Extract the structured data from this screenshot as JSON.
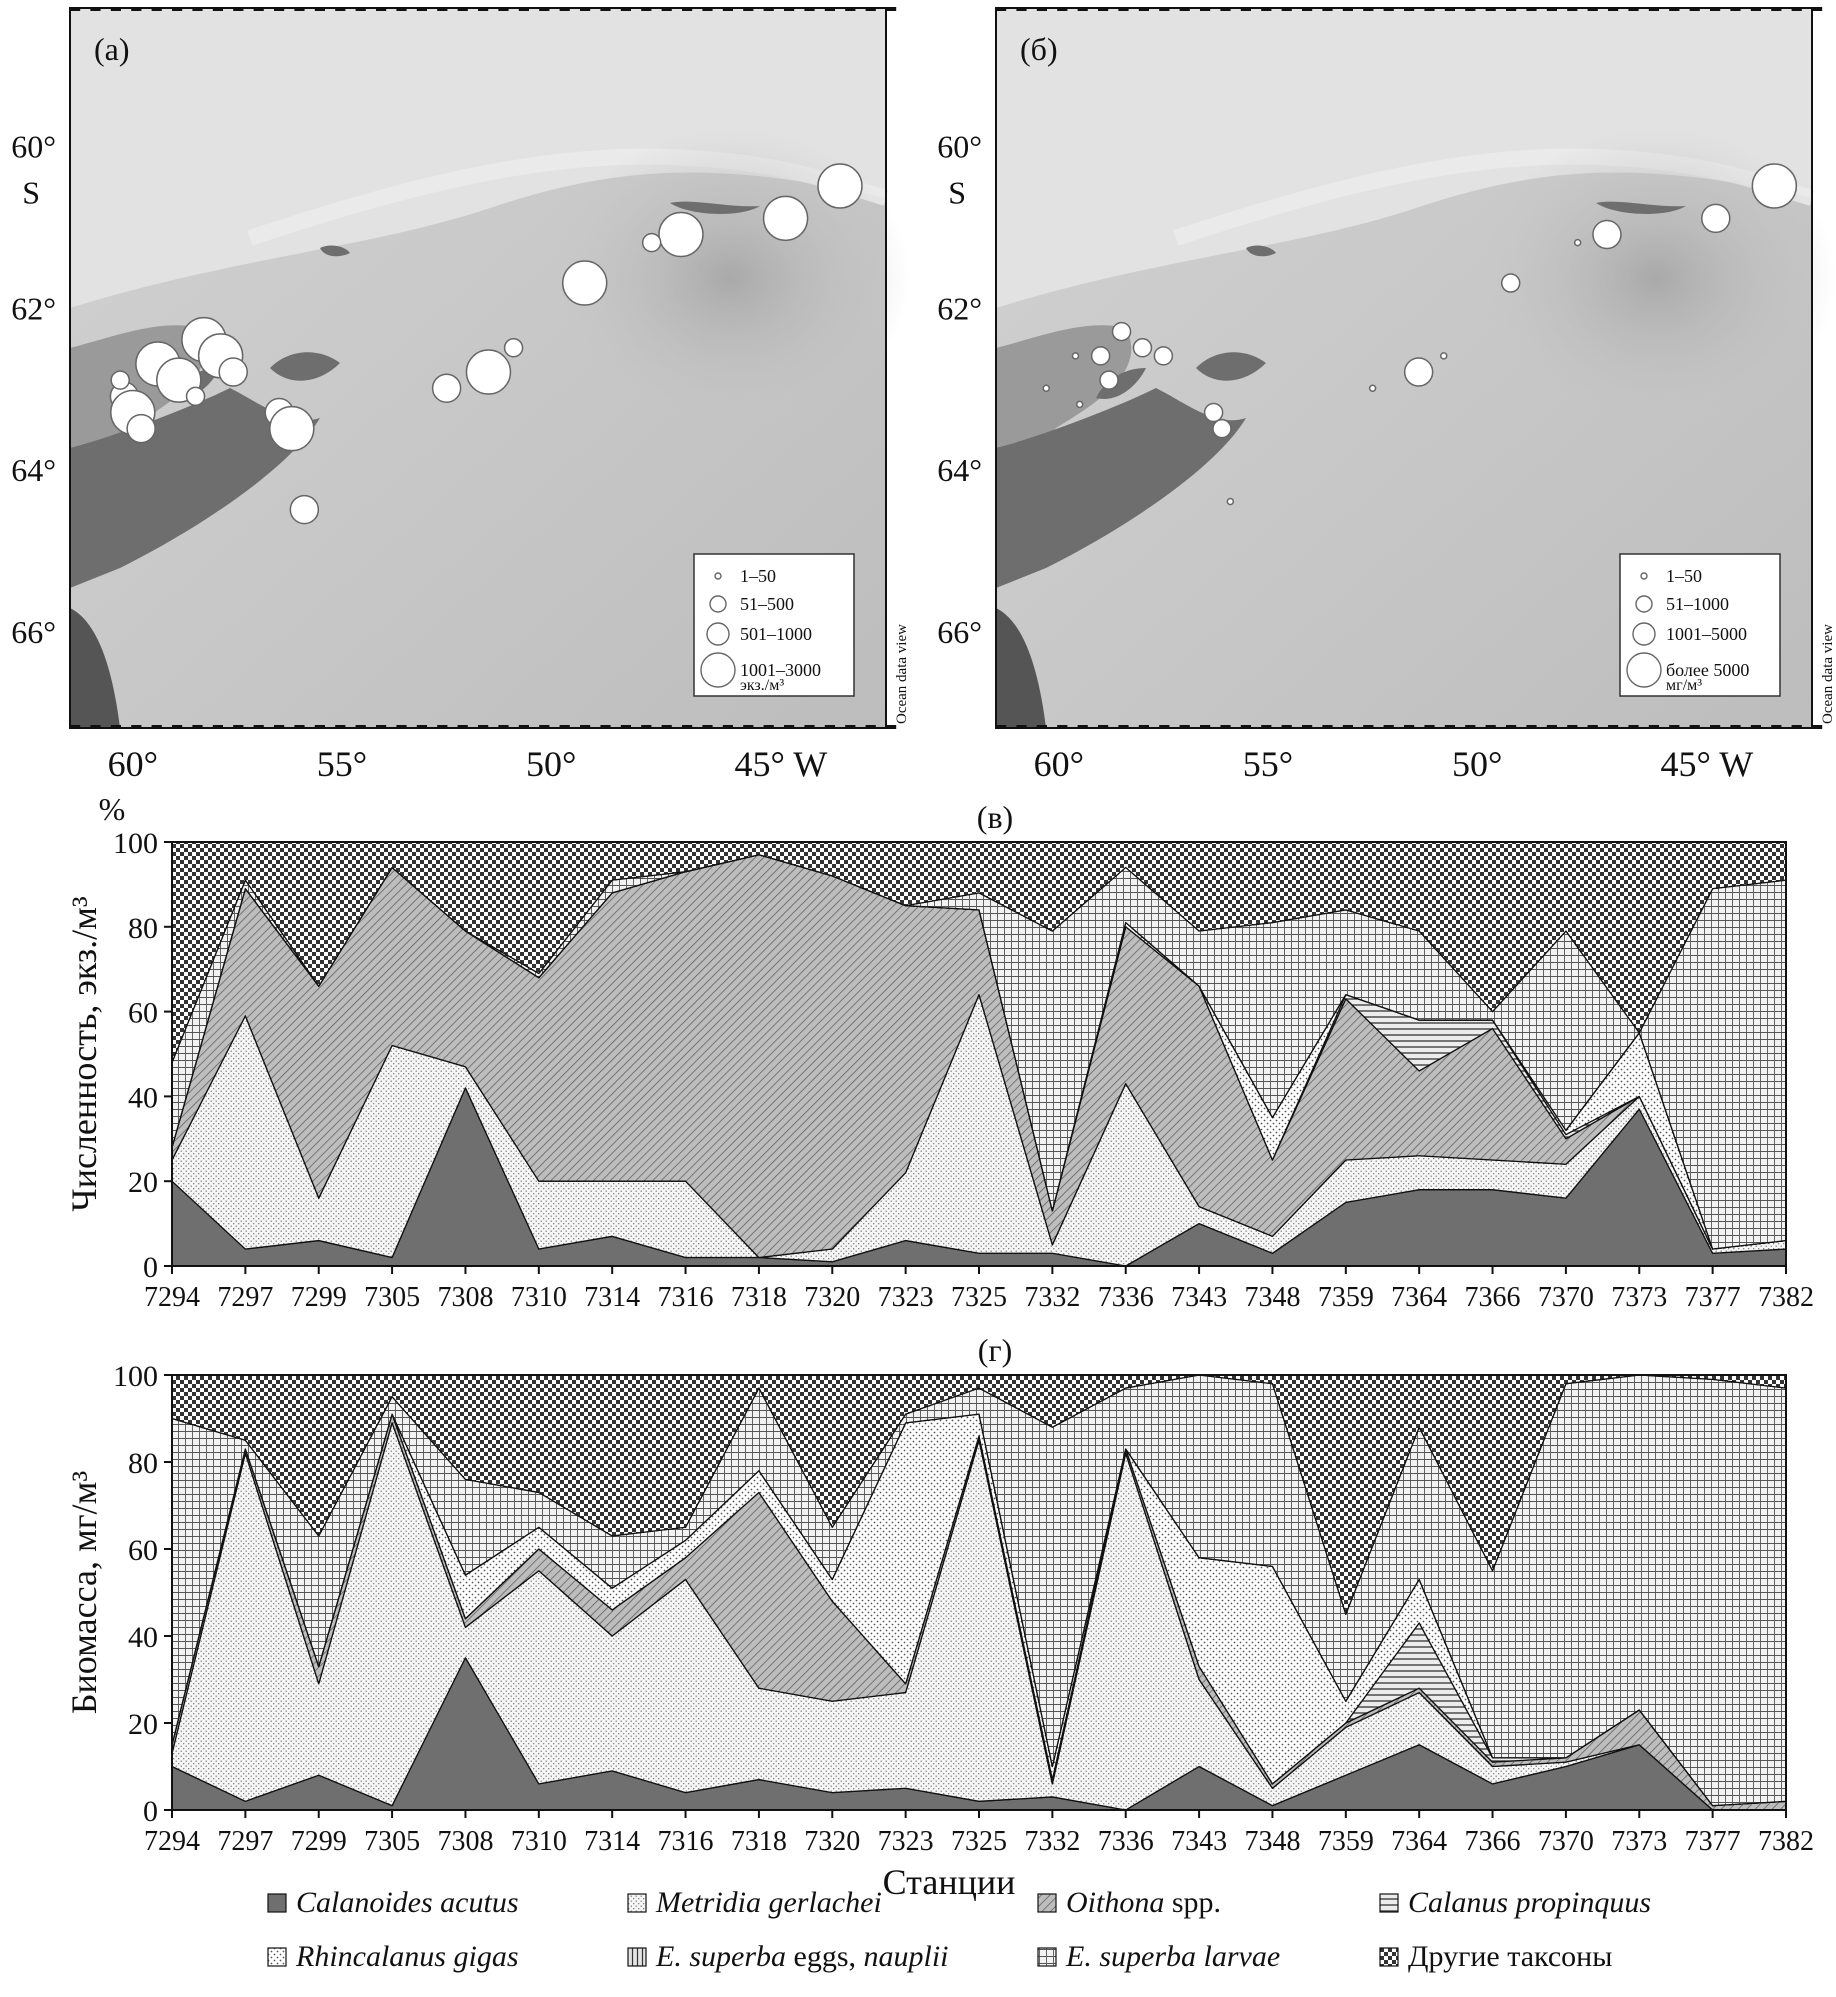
{
  "maps": [
    {
      "panel_label": "(а)",
      "lat_labels": [
        "60°",
        "62°",
        "64°",
        "66°"
      ],
      "lat_values": [
        60,
        62,
        64,
        66
      ],
      "hemisphere_lat": "S",
      "lon_labels": [
        "60°",
        "55°",
        "50°",
        "45° W"
      ],
      "lon_values": [
        60,
        55,
        50,
        45
      ],
      "watermark": "Ocean data view",
      "legend": [
        "1–50",
        "51–500",
        "501–1000",
        "1001–3000",
        "экз./м³"
      ],
      "stations": [
        {
          "lon": 59.4,
          "lat": 62.7,
          "cls": 3
        },
        {
          "lon": 58.9,
          "lat": 62.9,
          "cls": 3
        },
        {
          "lon": 58.3,
          "lat": 62.4,
          "cls": 3
        },
        {
          "lon": 57.9,
          "lat": 62.6,
          "cls": 3
        },
        {
          "lon": 57.6,
          "lat": 62.8,
          "cls": 2
        },
        {
          "lon": 58.5,
          "lat": 63.1,
          "cls": 1
        },
        {
          "lon": 60.2,
          "lat": 63.1,
          "cls": 2
        },
        {
          "lon": 60.0,
          "lat": 63.3,
          "cls": 3
        },
        {
          "lon": 59.8,
          "lat": 63.5,
          "cls": 2
        },
        {
          "lon": 60.3,
          "lat": 62.9,
          "cls": 1
        },
        {
          "lon": 56.5,
          "lat": 63.3,
          "cls": 2
        },
        {
          "lon": 56.2,
          "lat": 63.5,
          "cls": 3
        },
        {
          "lon": 55.9,
          "lat": 64.5,
          "cls": 2
        },
        {
          "lon": 51.5,
          "lat": 62.8,
          "cls": 3
        },
        {
          "lon": 52.5,
          "lat": 63.0,
          "cls": 2
        },
        {
          "lon": 50.9,
          "lat": 62.5,
          "cls": 1
        },
        {
          "lon": 49.2,
          "lat": 61.7,
          "cls": 3
        },
        {
          "lon": 46.9,
          "lat": 61.1,
          "cls": 3
        },
        {
          "lon": 47.6,
          "lat": 61.2,
          "cls": 1
        },
        {
          "lon": 44.4,
          "lat": 60.9,
          "cls": 3
        },
        {
          "lon": 43.1,
          "lat": 60.5,
          "cls": 3
        }
      ]
    },
    {
      "panel_label": "(б)",
      "lat_labels": [
        "60°",
        "62°",
        "64°",
        "66°"
      ],
      "lat_values": [
        60,
        62,
        64,
        66
      ],
      "hemisphere_lat": "S",
      "lon_labels": [
        "60°",
        "55°",
        "50°",
        "45° W"
      ],
      "lon_values": [
        60,
        55,
        50,
        45
      ],
      "watermark": "Ocean data view",
      "legend": [
        "1–50",
        "51–1000",
        "1001–5000",
        "более 5000",
        "мг/м³"
      ],
      "stations": [
        {
          "lon": 58.5,
          "lat": 62.3,
          "cls": 1
        },
        {
          "lon": 58.0,
          "lat": 62.5,
          "cls": 1
        },
        {
          "lon": 57.5,
          "lat": 62.6,
          "cls": 1
        },
        {
          "lon": 59.0,
          "lat": 62.6,
          "cls": 1
        },
        {
          "lon": 58.8,
          "lat": 62.9,
          "cls": 1
        },
        {
          "lon": 59.6,
          "lat": 62.6,
          "cls": 0
        },
        {
          "lon": 60.3,
          "lat": 63.0,
          "cls": 0
        },
        {
          "lon": 59.5,
          "lat": 63.2,
          "cls": 0
        },
        {
          "lon": 56.3,
          "lat": 63.3,
          "cls": 1
        },
        {
          "lon": 56.1,
          "lat": 63.5,
          "cls": 1
        },
        {
          "lon": 55.9,
          "lat": 64.4,
          "cls": 0
        },
        {
          "lon": 51.4,
          "lat": 62.8,
          "cls": 2
        },
        {
          "lon": 52.5,
          "lat": 63.0,
          "cls": 0
        },
        {
          "lon": 50.8,
          "lat": 62.6,
          "cls": 0
        },
        {
          "lon": 49.2,
          "lat": 61.7,
          "cls": 1
        },
        {
          "lon": 46.9,
          "lat": 61.1,
          "cls": 2
        },
        {
          "lon": 47.6,
          "lat": 61.2,
          "cls": 0
        },
        {
          "lon": 44.3,
          "lat": 60.9,
          "cls": 2
        },
        {
          "lon": 42.9,
          "lat": 60.5,
          "cls": 3
        }
      ]
    }
  ],
  "chart_data": [
    {
      "type": "area",
      "panel_label": "(в)",
      "unit_top": "%",
      "ylabel": "Численность, экз./м³",
      "xlabel": "",
      "ylim": [
        0,
        100
      ],
      "yticks": [
        0,
        20,
        40,
        60,
        80,
        100
      ],
      "categories": [
        "7294",
        "7297",
        "7299",
        "7305",
        "7308",
        "7310",
        "7314",
        "7316",
        "7318",
        "7320",
        "7323",
        "7325",
        "7332",
        "7336",
        "7343",
        "7348",
        "7359",
        "7364",
        "7366",
        "7370",
        "7373",
        "7377",
        "7382"
      ],
      "series": [
        {
          "name": "Calanoides acutus",
          "values": [
            20,
            4,
            6,
            2,
            42,
            4,
            7,
            2,
            2,
            1,
            6,
            3,
            3,
            0,
            10,
            3,
            15,
            18,
            18,
            16,
            37,
            3,
            4
          ]
        },
        {
          "name": "Metridia gerlachei",
          "values": [
            5,
            55,
            10,
            50,
            5,
            16,
            13,
            18,
            0,
            3,
            16,
            61,
            2,
            43,
            4,
            4,
            10,
            8,
            7,
            8,
            3,
            1,
            2
          ]
        },
        {
          "name": "Oithona spp.",
          "values": [
            3,
            30,
            50,
            42,
            32,
            48,
            68,
            73,
            95,
            88,
            63,
            20,
            8,
            37,
            52,
            18,
            38,
            20,
            31,
            6,
            0,
            0,
            0
          ]
        },
        {
          "name": "Calanus propinquus",
          "values": [
            0,
            0,
            0,
            0,
            0,
            0,
            0,
            0,
            0,
            0,
            0,
            0,
            0,
            0,
            0,
            0,
            1,
            12,
            2,
            1,
            0,
            0,
            0
          ]
        },
        {
          "name": "Rhincalanus gigas",
          "values": [
            0,
            0,
            0,
            0,
            0,
            0,
            0,
            0,
            0,
            0,
            0,
            0,
            0,
            1,
            0,
            10,
            0,
            0,
            0,
            1,
            15,
            0,
            0
          ]
        },
        {
          "name": "E. superba eggs, nauplii",
          "values": [
            0,
            0,
            0,
            0,
            0,
            0,
            0,
            0,
            0,
            0,
            0,
            0,
            0,
            0,
            0,
            0,
            0,
            0,
            0,
            0,
            0,
            0,
            0
          ]
        },
        {
          "name": "E. superba larvae",
          "values": [
            20,
            2,
            0,
            0,
            0,
            1,
            3,
            0,
            0,
            0,
            0,
            4,
            66,
            13,
            13,
            46,
            20,
            21,
            2,
            47,
            0,
            85,
            85
          ]
        },
        {
          "name": "Другие таксоны",
          "values": [
            52,
            9,
            34,
            6,
            21,
            31,
            9,
            7,
            3,
            8,
            15,
            12,
            21,
            6,
            21,
            19,
            16,
            21,
            40,
            22,
            45,
            11,
            9
          ]
        }
      ]
    },
    {
      "type": "area",
      "panel_label": "(г)",
      "ylabel": "Биомасса, мг/м³",
      "xlabel": "Станции",
      "ylim": [
        0,
        100
      ],
      "yticks": [
        0,
        20,
        40,
        60,
        80,
        100
      ],
      "categories": [
        "7294",
        "7297",
        "7299",
        "7305",
        "7308",
        "7310",
        "7314",
        "7316",
        "7318",
        "7320",
        "7323",
        "7325",
        "7332",
        "7336",
        "7343",
        "7348",
        "7359",
        "7364",
        "7366",
        "7370",
        "7373",
        "7377",
        "7382"
      ],
      "series": [
        {
          "name": "Calanoides acutus",
          "values": [
            10,
            2,
            8,
            1,
            35,
            6,
            9,
            4,
            7,
            4,
            5,
            2,
            3,
            0,
            10,
            1,
            8,
            15,
            6,
            10,
            15,
            0,
            0
          ]
        },
        {
          "name": "Metridia gerlachei",
          "values": [
            3,
            80,
            21,
            88,
            7,
            49,
            31,
            49,
            21,
            21,
            22,
            83,
            3,
            82,
            20,
            4,
            11,
            12,
            4,
            1,
            0,
            0,
            0
          ]
        },
        {
          "name": "Oithona spp.",
          "values": [
            2,
            1,
            4,
            2,
            2,
            5,
            6,
            5,
            45,
            23,
            2,
            1,
            1,
            1,
            3,
            1,
            1,
            1,
            1,
            1,
            8,
            1,
            2
          ]
        },
        {
          "name": "Calanus propinquus",
          "values": [
            0,
            0,
            0,
            0,
            0,
            0,
            0,
            0,
            0,
            0,
            0,
            0,
            0,
            0,
            0,
            0,
            0,
            15,
            1,
            0,
            0,
            0,
            0
          ]
        },
        {
          "name": "Rhincalanus gigas",
          "values": [
            0,
            0,
            0,
            0,
            10,
            5,
            5,
            4,
            5,
            5,
            60,
            5,
            3,
            0,
            25,
            50,
            5,
            10,
            0,
            0,
            0,
            0,
            0
          ]
        },
        {
          "name": "E. superba eggs, nauplii",
          "values": [
            0,
            0,
            0,
            0,
            0,
            0,
            0,
            0,
            0,
            0,
            0,
            0,
            0,
            0,
            0,
            0,
            0,
            0,
            0,
            0,
            0,
            0,
            0
          ]
        },
        {
          "name": "E. superba larvae",
          "values": [
            75,
            2,
            30,
            4,
            22,
            8,
            12,
            3,
            19,
            12,
            2,
            6,
            78,
            14,
            43,
            42,
            20,
            35,
            43,
            86,
            77,
            98,
            95
          ]
        },
        {
          "name": "Другие таксоны",
          "values": [
            10,
            15,
            37,
            5,
            24,
            27,
            37,
            35,
            3,
            35,
            9,
            3,
            12,
            3,
            0,
            2,
            55,
            12,
            45,
            2,
            0,
            1,
            3
          ]
        }
      ],
      "legend": [
        {
          "name": "Calanoides acutus",
          "italic": true
        },
        {
          "name": "Metridia gerlachei",
          "italic": true
        },
        {
          "name": "Oithona",
          "italic": true,
          "suffix": " spp."
        },
        {
          "name": "Calanus propinquus",
          "italic": true
        },
        {
          "name": "Rhincalanus gigas",
          "italic": true
        },
        {
          "name": "E. superba",
          "italic": true,
          "suffix": " eggs, ",
          "tail": "nauplii"
        },
        {
          "name": "E. superba larvae",
          "italic": true
        },
        {
          "name": "Другие таксоны",
          "italic": false
        }
      ]
    }
  ]
}
